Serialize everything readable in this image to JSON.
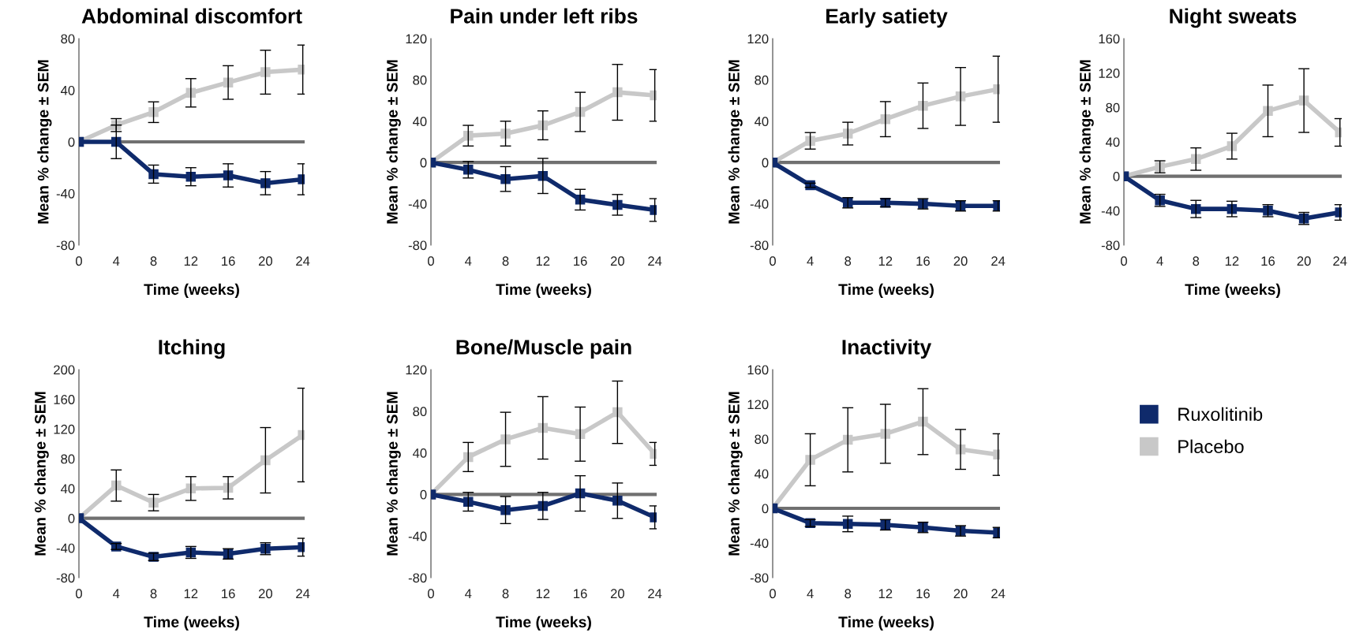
{
  "chart_data": [
    {
      "type": "line",
      "title": "Abdominal discomfort",
      "xlabel": "Time (weeks)",
      "ylabel": "Mean % change ± SEM",
      "categories": [
        "0",
        "4",
        "8",
        "12",
        "16",
        "20",
        "24"
      ],
      "ylim": [
        -80,
        80
      ],
      "yticks": [
        -80,
        -40,
        0,
        40,
        80
      ],
      "marker": "square",
      "grid": false,
      "ref_lines": [
        {
          "axis": "y",
          "value": 0,
          "color": "#707070"
        }
      ],
      "series": [
        {
          "color": "#c8c8c8",
          "values": [
            0,
            13,
            23,
            38,
            46,
            54,
            56
          ],
          "errors": [
            null,
            5,
            8,
            11,
            13,
            17,
            19
          ]
        },
        {
          "color": "#0f2a6b",
          "values": [
            0,
            0,
            -25,
            -27,
            -26,
            -32,
            -29
          ],
          "errors": [
            null,
            13,
            7,
            7,
            9,
            9,
            12
          ]
        }
      ]
    },
    {
      "type": "line",
      "title": "Pain under left ribs",
      "xlabel": "Time (weeks)",
      "ylabel": "Mean % change ± SEM",
      "categories": [
        "0",
        "4",
        "8",
        "12",
        "16",
        "20",
        "24"
      ],
      "ylim": [
        -80,
        120
      ],
      "yticks": [
        -80,
        -40,
        0,
        40,
        80,
        120
      ],
      "marker": "square",
      "grid": false,
      "ref_lines": [
        {
          "axis": "y",
          "value": 0,
          "color": "#707070"
        }
      ],
      "series": [
        {
          "color": "#c8c8c8",
          "values": [
            0,
            26,
            28,
            36,
            49,
            68,
            65
          ],
          "errors": [
            null,
            10,
            12,
            14,
            19,
            27,
            25
          ]
        },
        {
          "color": "#0f2a6b",
          "values": [
            0,
            -7,
            -16,
            -13,
            -36,
            -41,
            -46
          ],
          "errors": [
            null,
            8,
            12,
            17,
            10,
            10,
            11
          ]
        }
      ]
    },
    {
      "type": "line",
      "title": "Early satiety",
      "xlabel": "Time (weeks)",
      "ylabel": "Mean % change ± SEM",
      "categories": [
        "0",
        "4",
        "8",
        "12",
        "16",
        "20",
        "24"
      ],
      "ylim": [
        -80,
        120
      ],
      "yticks": [
        -80,
        -40,
        0,
        40,
        80,
        120
      ],
      "marker": "square",
      "grid": false,
      "ref_lines": [
        {
          "axis": "y",
          "value": 0,
          "color": "#707070"
        }
      ],
      "series": [
        {
          "color": "#c8c8c8",
          "values": [
            0,
            21,
            28,
            42,
            55,
            64,
            71
          ],
          "errors": [
            null,
            8,
            11,
            17,
            22,
            28,
            32
          ]
        },
        {
          "color": "#0f2a6b",
          "values": [
            0,
            -22,
            -39,
            -39,
            -40,
            -42,
            -42
          ],
          "errors": [
            null,
            2,
            5,
            4,
            5,
            5,
            5
          ]
        }
      ]
    },
    {
      "type": "line",
      "title": "Night sweats",
      "xlabel": "Time (weeks)",
      "ylabel": "Mean % change ± SEM",
      "categories": [
        "0",
        "4",
        "8",
        "12",
        "16",
        "20",
        "24"
      ],
      "ylim": [
        -80,
        160
      ],
      "yticks": [
        -80,
        -40,
        0,
        40,
        80,
        120,
        160
      ],
      "marker": "square",
      "grid": false,
      "ref_lines": [
        {
          "axis": "y",
          "value": 0,
          "color": "#707070"
        }
      ],
      "series": [
        {
          "color": "#c8c8c8",
          "values": [
            0,
            11,
            20,
            35,
            76,
            88,
            51
          ],
          "errors": [
            null,
            7,
            13,
            15,
            30,
            37,
            16
          ]
        },
        {
          "color": "#0f2a6b",
          "values": [
            0,
            -28,
            -38,
            -38,
            -40,
            -49,
            -42
          ],
          "errors": [
            null,
            7,
            10,
            9,
            7,
            7,
            9
          ]
        }
      ]
    },
    {
      "type": "line",
      "title": "Itching",
      "xlabel": "Time (weeks)",
      "ylabel": "Mean % change ± SEM",
      "categories": [
        "0",
        "4",
        "8",
        "12",
        "16",
        "20",
        "24"
      ],
      "ylim": [
        -80,
        200
      ],
      "yticks": [
        -80,
        -40,
        0,
        40,
        80,
        120,
        160,
        200
      ],
      "marker": "square",
      "grid": false,
      "ref_lines": [
        {
          "axis": "y",
          "value": 0,
          "color": "#707070"
        }
      ],
      "series": [
        {
          "color": "#c8c8c8",
          "values": [
            0,
            44,
            21,
            40,
            41,
            78,
            112
          ],
          "errors": [
            null,
            21,
            11,
            16,
            15,
            44,
            63
          ]
        },
        {
          "color": "#0f2a6b",
          "values": [
            0,
            -38,
            -52,
            -46,
            -48,
            -41,
            -39
          ],
          "errors": [
            null,
            4,
            5,
            8,
            7,
            8,
            12
          ]
        }
      ]
    },
    {
      "type": "line",
      "title": "Bone/Muscle pain",
      "xlabel": "Time (weeks)",
      "ylabel": "Mean % change ± SEM",
      "categories": [
        "0",
        "4",
        "8",
        "12",
        "16",
        "20",
        "24"
      ],
      "ylim": [
        -80,
        120
      ],
      "yticks": [
        -80,
        -40,
        0,
        40,
        80,
        120
      ],
      "marker": "square",
      "grid": false,
      "ref_lines": [
        {
          "axis": "y",
          "value": 0,
          "color": "#707070"
        }
      ],
      "series": [
        {
          "color": "#c8c8c8",
          "values": [
            0,
            36,
            53,
            64,
            58,
            79,
            39
          ],
          "errors": [
            null,
            14,
            26,
            30,
            26,
            30,
            11
          ]
        },
        {
          "color": "#0f2a6b",
          "values": [
            0,
            -7,
            -15,
            -11,
            1,
            -6,
            -22
          ],
          "errors": [
            null,
            9,
            13,
            13,
            17,
            17,
            11
          ]
        }
      ]
    },
    {
      "type": "line",
      "title": "Inactivity",
      "xlabel": "Time (weeks)",
      "ylabel": "Mean % change ± SEM",
      "categories": [
        "0",
        "4",
        "8",
        "12",
        "16",
        "20",
        "24"
      ],
      "ylim": [
        -80,
        160
      ],
      "yticks": [
        -80,
        -40,
        0,
        40,
        80,
        120,
        160
      ],
      "marker": "square",
      "grid": false,
      "legend": "right",
      "ref_lines": [
        {
          "axis": "y",
          "value": 0,
          "color": "#707070"
        }
      ],
      "series": [
        {
          "name": "Placebo",
          "color": "#c8c8c8",
          "values": [
            0,
            56,
            79,
            86,
            100,
            68,
            62
          ],
          "errors": [
            null,
            30,
            37,
            34,
            38,
            23,
            24
          ]
        },
        {
          "name": "Ruxolitinib",
          "color": "#0f2a6b",
          "values": [
            0,
            -17,
            -18,
            -19,
            -22,
            -26,
            -28
          ],
          "errors": [
            null,
            4,
            9,
            6,
            6,
            6,
            6
          ]
        }
      ]
    }
  ]
}
